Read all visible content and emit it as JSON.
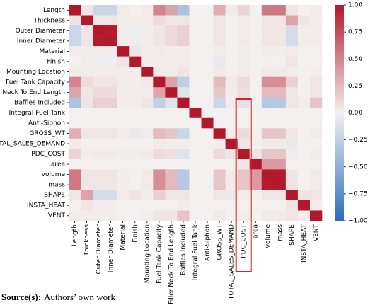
{
  "chart_data": {
    "type": "heatmap",
    "categories": [
      "Length",
      "Thickness",
      "Outer Diameter",
      "Inner Diameter",
      "Material",
      "Finish",
      "Mounting Location",
      "Fuel Tank Capacity",
      "Filler Neck To End Length",
      "Baffles Included",
      "Integral Fuel Tank",
      "Anti-Siphon",
      "GROSS_WT",
      "TOTAL_SALES_DEMAND",
      "PDC_COST",
      "area",
      "volume",
      "mass",
      "SHAPE",
      "INSTA_HEAT",
      "VENT"
    ],
    "matrix": [
      [
        1,
        0.05,
        -0.2,
        -0.2,
        0.03,
        0,
        0.03,
        0.5,
        0.35,
        -0.35,
        0,
        0,
        0.3,
        0.03,
        0.12,
        0,
        0.55,
        0.55,
        0.05,
        0,
        0.02
      ],
      [
        0.05,
        1,
        0.05,
        0.05,
        0.02,
        0.02,
        0.02,
        0.1,
        0.05,
        0.05,
        0,
        0,
        0.05,
        0,
        0.02,
        0,
        0.05,
        0.05,
        0.35,
        0.05,
        0.02
      ],
      [
        -0.2,
        0.05,
        1,
        0.98,
        0.02,
        -0.03,
        0.02,
        0.05,
        0.1,
        0.15,
        0,
        0,
        0.05,
        0,
        0.03,
        0,
        0.05,
        0.05,
        -0.15,
        0.02,
        0.02
      ],
      [
        -0.2,
        0.05,
        0.98,
        1,
        0.02,
        -0.03,
        0.02,
        0.05,
        0.1,
        0.15,
        0,
        0,
        0.05,
        0,
        0.03,
        0,
        0.05,
        0.05,
        -0.15,
        0.02,
        0.02
      ],
      [
        0.03,
        0.02,
        0.02,
        0.02,
        1,
        0.05,
        0.02,
        0.03,
        0.02,
        0.02,
        0,
        0,
        0.02,
        0,
        0.02,
        0,
        0.02,
        0.02,
        0.03,
        0,
        0
      ],
      [
        0,
        0.02,
        -0.03,
        -0.03,
        0.05,
        1,
        0.02,
        0.02,
        0.02,
        0.02,
        0,
        0,
        -0.05,
        0,
        0.02,
        0,
        0,
        0,
        0.05,
        0,
        0
      ],
      [
        0.03,
        0.02,
        0.02,
        0.02,
        0.02,
        0.02,
        1,
        0.03,
        0.02,
        0.05,
        0,
        0,
        0.03,
        0,
        0.03,
        0,
        0.03,
        0.03,
        0.02,
        0,
        0.02
      ],
      [
        0.5,
        0.1,
        0.05,
        0.05,
        0.03,
        0.02,
        0.03,
        1,
        0.35,
        -0.25,
        0,
        0,
        0.25,
        0.03,
        0.1,
        0,
        0.45,
        0.45,
        0.15,
        0,
        0.05
      ],
      [
        0.35,
        0.05,
        0.1,
        0.1,
        0.02,
        0.02,
        0.02,
        0.35,
        1,
        -0.1,
        0,
        0,
        0.2,
        0.02,
        0.08,
        0,
        0.25,
        0.25,
        0.05,
        0,
        0.05
      ],
      [
        -0.35,
        0.05,
        0.15,
        0.15,
        0.02,
        0.02,
        0.05,
        -0.25,
        -0.1,
        1,
        0,
        0,
        -0.2,
        0.02,
        -0.1,
        0,
        -0.3,
        -0.3,
        0.05,
        0.02,
        0.2
      ],
      [
        0,
        0,
        0,
        0,
        0,
        0,
        0,
        0,
        0,
        0,
        1,
        0,
        0,
        0,
        0,
        0,
        0,
        0,
        0,
        0,
        0
      ],
      [
        0,
        0,
        0,
        0,
        0,
        0,
        0,
        0,
        0,
        0,
        0,
        1,
        0,
        0,
        0,
        0,
        0,
        0,
        0,
        0,
        0
      ],
      [
        0.3,
        0.05,
        0.05,
        0.05,
        0.02,
        -0.05,
        0.03,
        0.25,
        0.2,
        -0.2,
        0,
        0,
        1,
        0.02,
        0.1,
        0,
        0.2,
        0.2,
        0.05,
        0,
        0.03
      ],
      [
        0.03,
        0,
        0,
        0,
        0,
        0,
        0,
        0.03,
        0.02,
        0.02,
        0,
        0,
        0.02,
        1,
        0.05,
        0,
        0.03,
        0.03,
        -0.05,
        0,
        0
      ],
      [
        0.12,
        0.02,
        0.03,
        0.03,
        0.02,
        0.02,
        0.03,
        0.1,
        0.08,
        -0.1,
        0,
        0,
        0.1,
        0.05,
        1,
        0.05,
        0.2,
        0.2,
        0.02,
        0,
        0.02
      ],
      [
        0,
        0,
        0,
        0,
        0,
        0,
        0,
        0,
        0,
        0,
        0,
        0,
        0,
        0,
        0.05,
        1,
        0.4,
        0.4,
        0,
        0,
        0
      ],
      [
        0.55,
        0.05,
        0.05,
        0.05,
        0.02,
        0,
        0.03,
        0.45,
        0.25,
        -0.3,
        0,
        0,
        0.2,
        0.03,
        0.2,
        0.4,
        1,
        0.99,
        0.05,
        0,
        0.03
      ],
      [
        0.55,
        0.05,
        0.05,
        0.05,
        0.02,
        0,
        0.03,
        0.45,
        0.25,
        -0.3,
        0,
        0,
        0.2,
        0.03,
        0.2,
        0.4,
        0.99,
        1,
        0.05,
        0,
        0.03
      ],
      [
        0.05,
        0.35,
        -0.15,
        -0.15,
        0.03,
        0.05,
        0.02,
        0.15,
        0.05,
        0.05,
        0,
        0,
        0.05,
        -0.05,
        0.02,
        0,
        0.05,
        0.05,
        1,
        0.05,
        0.05
      ],
      [
        0,
        0.05,
        0.02,
        0.02,
        0,
        0,
        0,
        0,
        0,
        0.02,
        0,
        0,
        0,
        0,
        0,
        0,
        0,
        0,
        0.05,
        1,
        0.02
      ],
      [
        0.02,
        0.02,
        0.02,
        0.02,
        0,
        0,
        0.02,
        0.05,
        0.05,
        0.2,
        0,
        0,
        0.03,
        0,
        0.02,
        0,
        0.03,
        0.03,
        0.05,
        0.02,
        1
      ]
    ],
    "colormap": [
      "#2b6cc0",
      "#f3f0ef",
      "#b2182b"
    ],
    "clim": [
      -1,
      1
    ],
    "cticks": [
      {
        "value": -1,
        "label": "−1.00"
      },
      {
        "value": -0.75,
        "label": "−0.75"
      },
      {
        "value": -0.5,
        "label": "−0.50"
      },
      {
        "value": -0.25,
        "label": "−0.25"
      },
      {
        "value": 0,
        "label": "0.00"
      },
      {
        "value": 0.25,
        "label": "0.25"
      },
      {
        "value": 0.5,
        "label": "0.50"
      },
      {
        "value": 0.75,
        "label": "0.75"
      },
      {
        "value": 1,
        "label": "1.00"
      }
    ],
    "source_label": "Source(s):",
    "source_text": "Authors’ own work"
  }
}
